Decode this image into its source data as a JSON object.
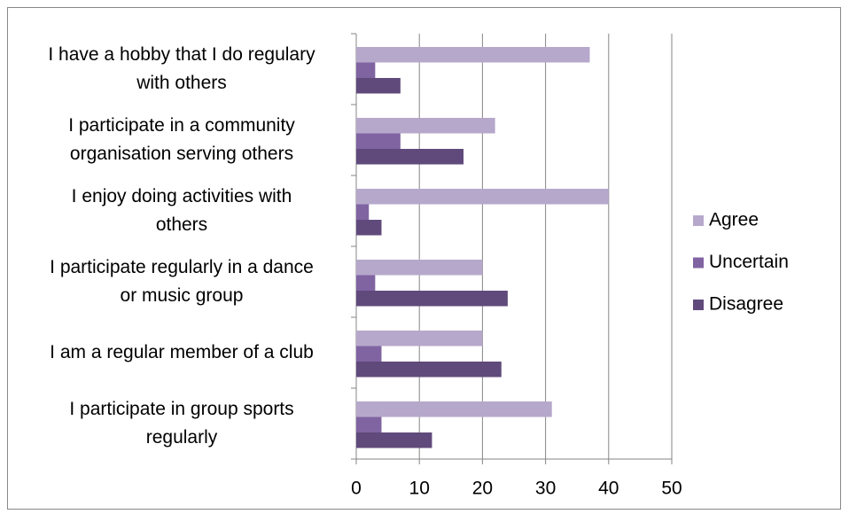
{
  "chart_data": {
    "type": "barh",
    "categories": [
      "I have a hobby that I do regulary with others",
      "I participate in a community organisation serving others",
      "I enjoy doing activities with others",
      "I participate regularly in a dance or music group",
      "I am a regular member of a club",
      "I participate in group sports regularly"
    ],
    "series": [
      {
        "name": "Agree",
        "color": "#b6a8cb",
        "values": [
          37,
          22,
          40,
          20,
          20,
          31
        ]
      },
      {
        "name": "Uncertain",
        "color": "#8064a2",
        "values": [
          3,
          7,
          2,
          3,
          4,
          4
        ]
      },
      {
        "name": "Disagree",
        "color": "#604a7b",
        "values": [
          7,
          17,
          4,
          24,
          23,
          12
        ]
      }
    ],
    "xlim": [
      0,
      50
    ],
    "xticks": [
      0,
      10,
      20,
      30,
      40,
      50
    ],
    "grid": true,
    "legend": "right"
  }
}
